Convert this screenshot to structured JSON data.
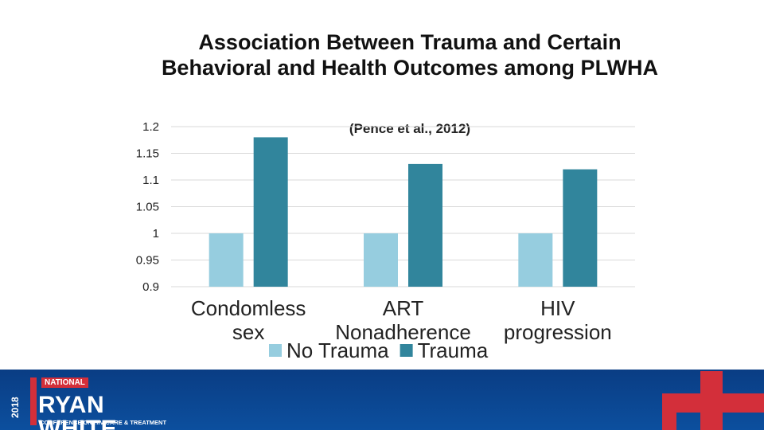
{
  "chart_data": {
    "type": "bar",
    "title": "Association Between Trauma and Certain Behavioral and Health Outcomes among PLWHA",
    "subtitle": "(Pence et al., 2012)",
    "categories": [
      [
        "Condomless",
        "sex"
      ],
      [
        "ART",
        "Nonadherence"
      ],
      [
        "HIV",
        "progression"
      ]
    ],
    "series": [
      {
        "name": "No Trauma",
        "values": [
          1.0,
          1.0,
          1.0
        ],
        "color": "#96cddf"
      },
      {
        "name": "Trauma",
        "values": [
          1.18,
          1.13,
          1.12
        ],
        "color": "#31859c"
      }
    ],
    "y_ticks": [
      "1.2",
      "1.15",
      "1.1",
      "1.05",
      "1",
      "0.95",
      "0.9"
    ],
    "ylim": [
      0.9,
      1.2
    ],
    "grid": true,
    "legend_position": "bottom"
  },
  "footer": {
    "year": "2018",
    "national": "NATIONAL",
    "name": "RYAN WHITE",
    "subtitle": "CONFERENCE ON HIV CARE & TREATMENT",
    "bg_color": "#0c4f9e",
    "accent_color": "#d32f3a"
  }
}
